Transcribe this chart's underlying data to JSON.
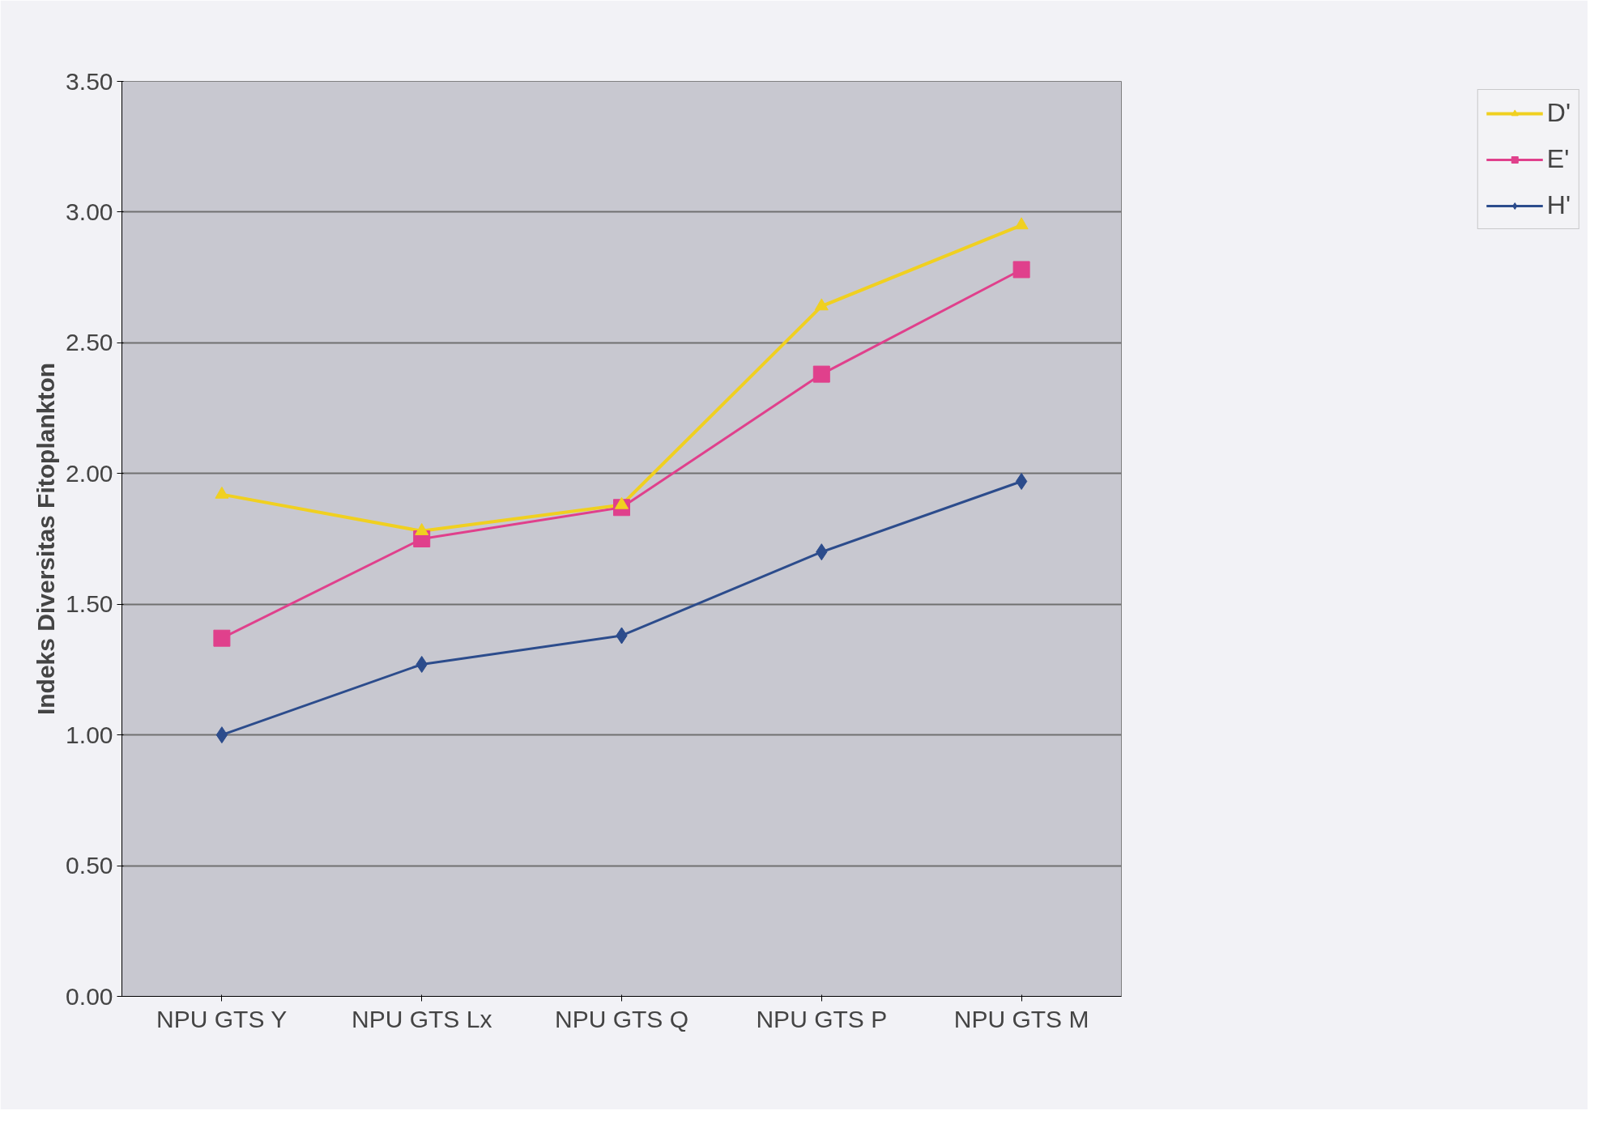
{
  "chart_data": {
    "type": "line",
    "ylabel": "Indeks Diversitas Fitoplankton",
    "categories": [
      "NPU GTS Y",
      "NPU GTS Lx",
      "NPU GTS Q",
      "NPU GTS P",
      "NPU GTS M"
    ],
    "series": [
      {
        "name": "D'",
        "color": "#f0d020",
        "marker": "triangle",
        "values": [
          1.92,
          1.78,
          1.88,
          2.64,
          2.95
        ]
      },
      {
        "name": "E'",
        "color": "#e0408c",
        "marker": "square",
        "values": [
          1.37,
          1.75,
          1.87,
          2.38,
          2.78
        ]
      },
      {
        "name": "H'",
        "color": "#2c4c8c",
        "marker": "diamond",
        "values": [
          1.0,
          1.27,
          1.38,
          1.7,
          1.97
        ]
      }
    ],
    "ylim": [
      0,
      3.5
    ],
    "yticks": [
      {
        "value": 0,
        "label": "0.00"
      },
      {
        "value": 0.5,
        "label": "0.50"
      },
      {
        "value": 1,
        "label": "1.00"
      },
      {
        "value": 1.5,
        "label": "1.50"
      },
      {
        "value": 2,
        "label": "2.00"
      },
      {
        "value": 2.5,
        "label": "2.50"
      },
      {
        "value": 3,
        "label": "3.00"
      },
      {
        "value": 3.5,
        "label": "3.50"
      }
    ],
    "grid": "y",
    "legend": "right",
    "line_style": "solid"
  }
}
